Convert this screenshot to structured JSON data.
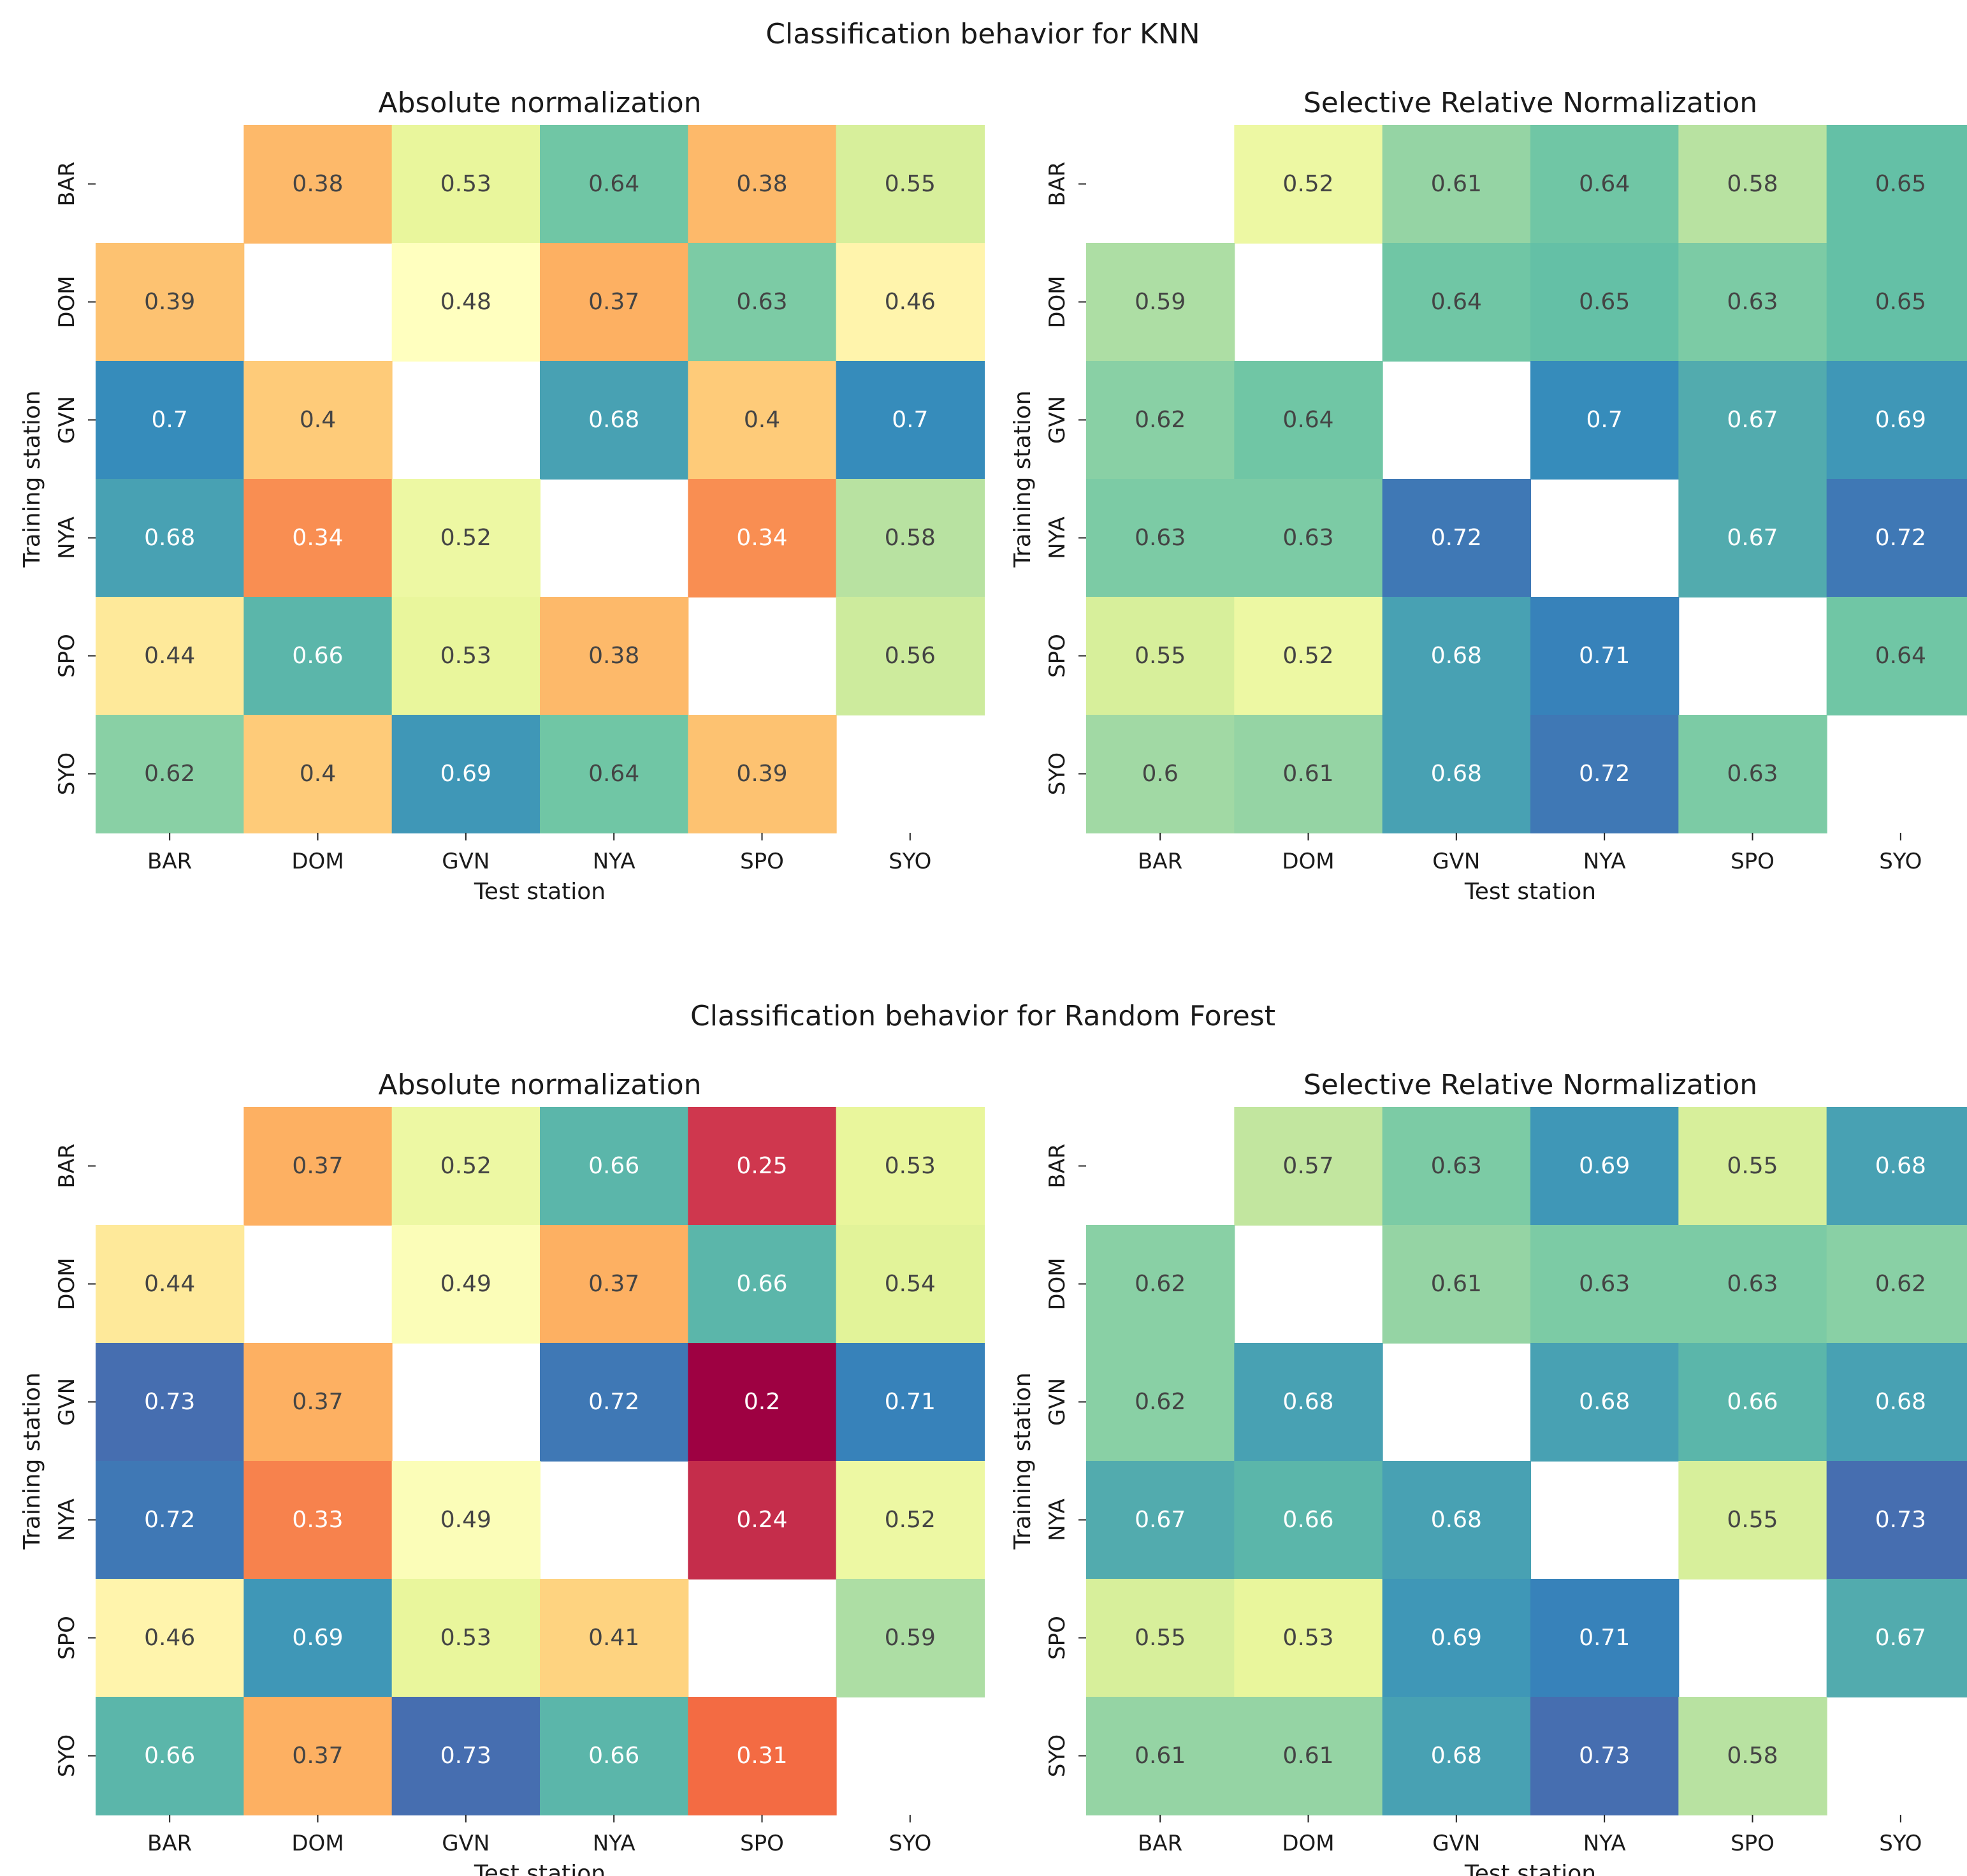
{
  "chart_data": [
    {
      "type": "heatmap",
      "suptitle": "Classification behavior for KNN",
      "title": "Absolute normalization",
      "xlabel": "Test station",
      "ylabel": "Training station",
      "x_categories": [
        "BAR",
        "DOM",
        "GVN",
        "NYA",
        "SPO",
        "SYO"
      ],
      "y_categories": [
        "BAR",
        "DOM",
        "GVN",
        "NYA",
        "SPO",
        "SYO"
      ],
      "values": [
        [
          null,
          0.38,
          0.53,
          0.64,
          0.38,
          0.55
        ],
        [
          0.39,
          null,
          0.48,
          0.37,
          0.63,
          0.46
        ],
        [
          0.7,
          0.4,
          null,
          0.68,
          0.4,
          0.7
        ],
        [
          0.68,
          0.34,
          0.52,
          null,
          0.34,
          0.58
        ],
        [
          0.44,
          0.66,
          0.53,
          0.38,
          null,
          0.56
        ],
        [
          0.62,
          0.4,
          0.69,
          0.64,
          0.39,
          null
        ]
      ],
      "colormap": "Spectral",
      "vlim": [
        0.2,
        0.76
      ]
    },
    {
      "type": "heatmap",
      "title": "Selective Relative Normalization",
      "xlabel": "Test station",
      "ylabel": "Training station",
      "x_categories": [
        "BAR",
        "DOM",
        "GVN",
        "NYA",
        "SPO",
        "SYO"
      ],
      "y_categories": [
        "BAR",
        "DOM",
        "GVN",
        "NYA",
        "SPO",
        "SYO"
      ],
      "values": [
        [
          null,
          0.52,
          0.61,
          0.64,
          0.58,
          0.65
        ],
        [
          0.59,
          null,
          0.64,
          0.65,
          0.63,
          0.65
        ],
        [
          0.62,
          0.64,
          null,
          0.7,
          0.67,
          0.69
        ],
        [
          0.63,
          0.63,
          0.72,
          null,
          0.67,
          0.72
        ],
        [
          0.55,
          0.52,
          0.68,
          0.71,
          null,
          0.64
        ],
        [
          0.6,
          0.61,
          0.68,
          0.72,
          0.63,
          null
        ]
      ],
      "colormap": "Spectral",
      "vlim": [
        0.2,
        0.76
      ]
    },
    {
      "type": "heatmap",
      "suptitle": "Classification behavior for Random Forest",
      "title": "Absolute normalization",
      "xlabel": "Test station",
      "ylabel": "Training station",
      "x_categories": [
        "BAR",
        "DOM",
        "GVN",
        "NYA",
        "SPO",
        "SYO"
      ],
      "y_categories": [
        "BAR",
        "DOM",
        "GVN",
        "NYA",
        "SPO",
        "SYO"
      ],
      "values": [
        [
          null,
          0.37,
          0.52,
          0.66,
          0.25,
          0.53
        ],
        [
          0.44,
          null,
          0.49,
          0.37,
          0.66,
          0.54
        ],
        [
          0.73,
          0.37,
          null,
          0.72,
          0.2,
          0.71
        ],
        [
          0.72,
          0.33,
          0.49,
          null,
          0.24,
          0.52
        ],
        [
          0.46,
          0.69,
          0.53,
          0.41,
          null,
          0.59
        ],
        [
          0.66,
          0.37,
          0.73,
          0.66,
          0.31,
          null
        ]
      ],
      "colormap": "Spectral",
      "vlim": [
        0.2,
        0.76
      ]
    },
    {
      "type": "heatmap",
      "title": "Selective Relative Normalization",
      "xlabel": "Test station",
      "ylabel": "Training station",
      "x_categories": [
        "BAR",
        "DOM",
        "GVN",
        "NYA",
        "SPO",
        "SYO"
      ],
      "y_categories": [
        "BAR",
        "DOM",
        "GVN",
        "NYA",
        "SPO",
        "SYO"
      ],
      "values": [
        [
          null,
          0.57,
          0.63,
          0.69,
          0.55,
          0.68
        ],
        [
          0.62,
          null,
          0.61,
          0.63,
          0.63,
          0.62
        ],
        [
          0.62,
          0.68,
          null,
          0.68,
          0.66,
          0.68
        ],
        [
          0.67,
          0.66,
          0.68,
          null,
          0.55,
          0.73
        ],
        [
          0.55,
          0.53,
          0.69,
          0.71,
          null,
          0.67
        ],
        [
          0.61,
          0.61,
          0.68,
          0.73,
          0.58,
          null
        ]
      ],
      "colormap": "Spectral",
      "vlim": [
        0.2,
        0.76
      ]
    }
  ]
}
